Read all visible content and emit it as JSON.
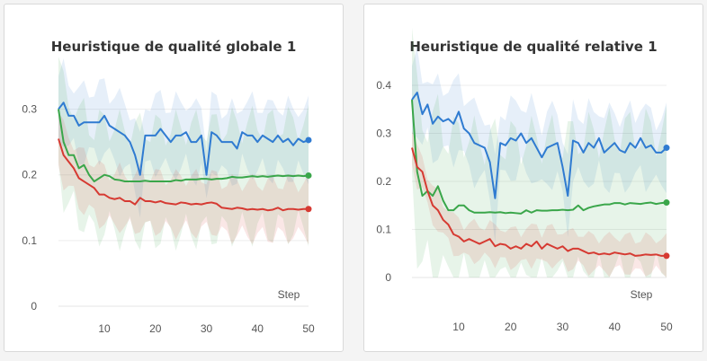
{
  "colors": {
    "blue": "#2f7bd1",
    "green": "#3aa64a",
    "red": "#d63a32"
  },
  "chart_data": [
    {
      "type": "line",
      "title": "Heuristique de qualité globale 1",
      "xlabel": "Step",
      "ylabel": "",
      "xlim": [
        1,
        50
      ],
      "ylim": [
        0,
        0.35
      ],
      "x_ticks": [
        10,
        20,
        30,
        40,
        50
      ],
      "x_tick_labels": [
        "10",
        "20",
        "30",
        "40",
        "50"
      ],
      "y_ticks": [
        0,
        0.1,
        0.2,
        0.3
      ],
      "y_tick_labels": [
        "0",
        "0.1",
        "0.2",
        "0.3"
      ],
      "grid": true,
      "legend": "none",
      "series": [
        {
          "color": "blue",
          "band_width": 0.05,
          "values": [
            0.3,
            0.31,
            0.29,
            0.29,
            0.275,
            0.28,
            0.28,
            0.28,
            0.28,
            0.29,
            0.275,
            0.27,
            0.265,
            0.26,
            0.25,
            0.23,
            0.2,
            0.26,
            0.26,
            0.26,
            0.27,
            0.26,
            0.25,
            0.26,
            0.26,
            0.265,
            0.25,
            0.25,
            0.26,
            0.2,
            0.265,
            0.26,
            0.25,
            0.25,
            0.25,
            0.24,
            0.265,
            0.26,
            0.26,
            0.25,
            0.26,
            0.255,
            0.25,
            0.26,
            0.25,
            0.255,
            0.245,
            0.255,
            0.25,
            0.253
          ]
        },
        {
          "color": "green",
          "band_width": 0.08,
          "values": [
            0.3,
            0.25,
            0.23,
            0.23,
            0.21,
            0.215,
            0.2,
            0.19,
            0.195,
            0.2,
            0.198,
            0.193,
            0.192,
            0.19,
            0.19,
            0.19,
            0.19,
            0.191,
            0.19,
            0.19,
            0.19,
            0.19,
            0.19,
            0.192,
            0.191,
            0.193,
            0.193,
            0.193,
            0.194,
            0.194,
            0.193,
            0.194,
            0.194,
            0.195,
            0.197,
            0.196,
            0.196,
            0.197,
            0.198,
            0.197,
            0.198,
            0.197,
            0.198,
            0.199,
            0.198,
            0.199,
            0.198,
            0.199,
            0.198,
            0.199
          ]
        },
        {
          "color": "red",
          "band_width": 0.04,
          "values": [
            0.255,
            0.23,
            0.22,
            0.21,
            0.195,
            0.19,
            0.185,
            0.18,
            0.17,
            0.17,
            0.165,
            0.163,
            0.165,
            0.16,
            0.16,
            0.155,
            0.165,
            0.16,
            0.16,
            0.158,
            0.16,
            0.157,
            0.156,
            0.155,
            0.158,
            0.157,
            0.155,
            0.156,
            0.155,
            0.157,
            0.158,
            0.156,
            0.15,
            0.149,
            0.148,
            0.15,
            0.149,
            0.147,
            0.148,
            0.147,
            0.148,
            0.146,
            0.147,
            0.15,
            0.146,
            0.148,
            0.148,
            0.147,
            0.148,
            0.148
          ]
        }
      ]
    },
    {
      "type": "line",
      "title": "Heuristique de qualité relative 1",
      "xlabel": "Step",
      "ylabel": "",
      "xlim": [
        1,
        50
      ],
      "ylim": [
        0,
        0.4
      ],
      "x_ticks": [
        10,
        20,
        30,
        40,
        50
      ],
      "x_tick_labels": [
        "10",
        "20",
        "30",
        "40",
        "50"
      ],
      "y_ticks": [
        0,
        0.1,
        0.2,
        0.3,
        0.4
      ],
      "y_tick_labels": [
        "0",
        "0.1",
        "0.2",
        "0.3",
        "0.4"
      ],
      "grid": true,
      "legend": "none",
      "series": [
        {
          "color": "blue",
          "band_width": 0.07,
          "values": [
            0.37,
            0.385,
            0.34,
            0.36,
            0.32,
            0.335,
            0.325,
            0.33,
            0.32,
            0.345,
            0.31,
            0.3,
            0.28,
            0.275,
            0.27,
            0.24,
            0.165,
            0.28,
            0.275,
            0.29,
            0.285,
            0.3,
            0.28,
            0.29,
            0.27,
            0.25,
            0.27,
            0.275,
            0.28,
            0.23,
            0.17,
            0.285,
            0.28,
            0.26,
            0.28,
            0.27,
            0.29,
            0.26,
            0.27,
            0.28,
            0.265,
            0.26,
            0.28,
            0.27,
            0.29,
            0.27,
            0.275,
            0.26,
            0.26,
            0.27
          ]
        },
        {
          "color": "green",
          "band_width": 0.15,
          "values": [
            0.37,
            0.22,
            0.17,
            0.18,
            0.17,
            0.19,
            0.16,
            0.14,
            0.14,
            0.15,
            0.15,
            0.14,
            0.135,
            0.135,
            0.135,
            0.136,
            0.135,
            0.136,
            0.134,
            0.135,
            0.134,
            0.133,
            0.14,
            0.135,
            0.14,
            0.139,
            0.139,
            0.14,
            0.14,
            0.141,
            0.14,
            0.141,
            0.15,
            0.14,
            0.145,
            0.148,
            0.15,
            0.152,
            0.152,
            0.155,
            0.155,
            0.152,
            0.155,
            0.154,
            0.153,
            0.155,
            0.156,
            0.153,
            0.155,
            0.156
          ]
        },
        {
          "color": "red",
          "band_width": 0.035,
          "values": [
            0.27,
            0.23,
            0.22,
            0.18,
            0.15,
            0.14,
            0.12,
            0.11,
            0.09,
            0.085,
            0.075,
            0.08,
            0.075,
            0.07,
            0.075,
            0.08,
            0.065,
            0.07,
            0.068,
            0.06,
            0.065,
            0.06,
            0.07,
            0.065,
            0.075,
            0.06,
            0.07,
            0.065,
            0.06,
            0.065,
            0.055,
            0.06,
            0.06,
            0.055,
            0.05,
            0.052,
            0.048,
            0.05,
            0.048,
            0.052,
            0.05,
            0.048,
            0.05,
            0.045,
            0.046,
            0.048,
            0.047,
            0.048,
            0.045,
            0.045
          ]
        }
      ]
    }
  ]
}
